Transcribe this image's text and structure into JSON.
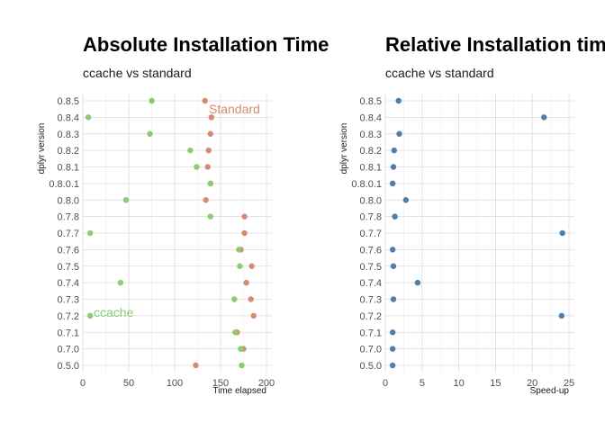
{
  "chart_data": [
    {
      "type": "scatter",
      "title": "Absolute Installation Time",
      "subtitle": "ccache vs standard",
      "xlabel": "Time elapsed",
      "ylabel": "dplyr version",
      "xlim": [
        0,
        200
      ],
      "x_ticks": [
        0,
        50,
        100,
        150,
        200
      ],
      "categories": [
        "5.0",
        "7.0",
        "7.1",
        "7.2",
        "7.3",
        "7.4",
        "7.5",
        "7.6",
        "7.7",
        "7.8",
        "8.0",
        "8.0.1",
        "8.1",
        "8.2",
        "8.3",
        "8.4",
        "8.5"
      ],
      "category_labels": [
        "0.5.0",
        "0.7.0",
        "0.7.1",
        "0.7.2",
        "0.7.3",
        "0.7.4",
        "0.7.5",
        "0.7.6",
        "0.7.7",
        "0.7.8",
        "0.8.0",
        "0.8.0.1",
        "0.8.1",
        "0.8.2",
        "0.8.3",
        "0.8.4",
        "0.8.5"
      ],
      "grid": true,
      "series": [
        {
          "name": "Standard",
          "color": "#d58a72",
          "values": [
            123,
            175,
            168,
            186,
            183,
            178,
            184,
            172,
            176,
            176,
            134,
            139,
            136,
            137,
            139,
            140,
            133
          ]
        },
        {
          "name": "ccache",
          "color": "#89cc72",
          "values": [
            173,
            172,
            166,
            8,
            165,
            41,
            171,
            170,
            8,
            139,
            47,
            139,
            124,
            117,
            73,
            6,
            75
          ]
        }
      ]
    },
    {
      "type": "scatter",
      "title": "Relative Installation time",
      "subtitle": "ccache vs standard",
      "xlabel": "Speed-up",
      "ylabel": "dplyr version",
      "xlim": [
        0,
        25
      ],
      "x_ticks": [
        0,
        5,
        10,
        15,
        20,
        25
      ],
      "categories": [
        "5.0",
        "7.0",
        "7.1",
        "7.2",
        "7.3",
        "7.4",
        "7.5",
        "7.6",
        "7.7",
        "7.8",
        "8.0",
        "8.0.1",
        "8.1",
        "8.2",
        "8.3",
        "8.4",
        "8.5"
      ],
      "category_labels": [
        "0.5.0",
        "0.7.0",
        "0.7.1",
        "0.7.2",
        "0.7.3",
        "0.7.4",
        "0.7.5",
        "0.7.6",
        "0.7.7",
        "0.7.8",
        "0.8.0",
        "0.8.0.1",
        "0.8.1",
        "0.8.2",
        "0.8.3",
        "0.8.4",
        "0.8.5"
      ],
      "grid": true,
      "series": [
        {
          "color": "#4a7fae",
          "values": [
            1.0,
            1.0,
            1.0,
            24.0,
            1.1,
            4.4,
            1.1,
            1.0,
            24.1,
            1.3,
            2.8,
            1.0,
            1.1,
            1.2,
            1.9,
            21.6,
            1.8
          ]
        }
      ]
    }
  ]
}
